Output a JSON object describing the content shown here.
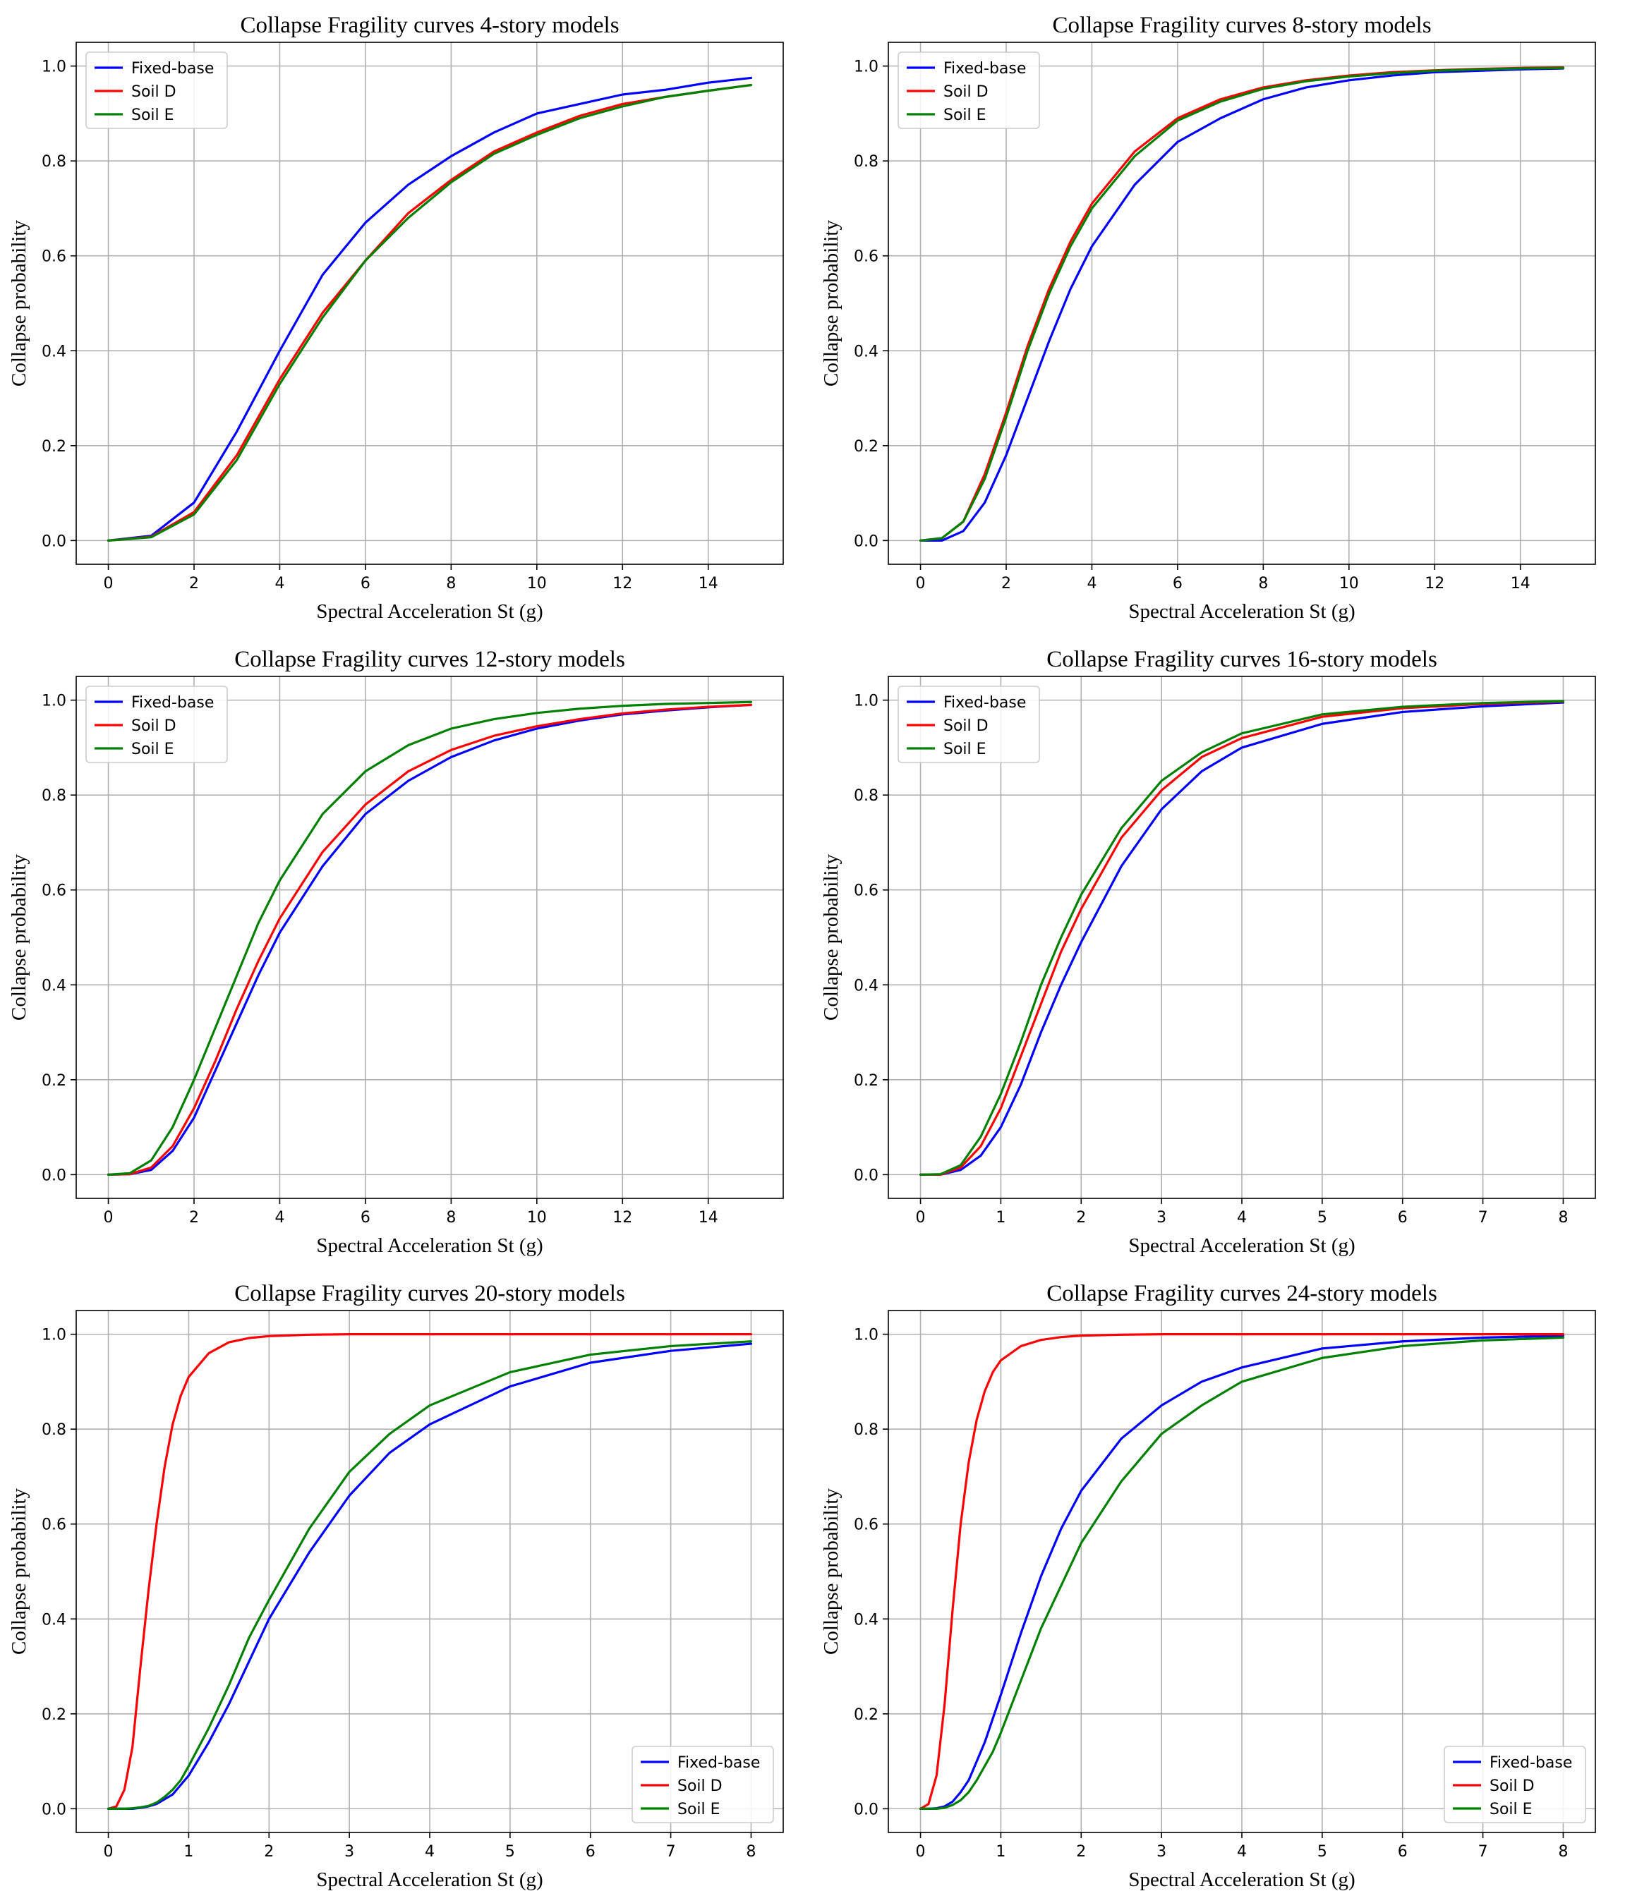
{
  "chart_data": [
    {
      "type": "line",
      "title": "Collapse Fragility curves 4-story models",
      "xlabel": "Spectral Acceleration St (g)",
      "ylabel": "Collapse probability",
      "xlim": [
        -0.75,
        15.75
      ],
      "ylim": [
        -0.05,
        1.05
      ],
      "xticks": [
        0,
        2,
        4,
        6,
        8,
        10,
        12,
        14
      ],
      "yticks": [
        0.0,
        0.2,
        0.4,
        0.6,
        0.8,
        1.0
      ],
      "grid": true,
      "legend_position": "top-left",
      "x": [
        0,
        1,
        2,
        3,
        4,
        5,
        6,
        7,
        8,
        9,
        10,
        11,
        12,
        13,
        14,
        15
      ],
      "series": [
        {
          "name": "Fixed-base",
          "color": "#0000ff",
          "values": [
            0.0,
            0.01,
            0.08,
            0.23,
            0.4,
            0.56,
            0.67,
            0.75,
            0.81,
            0.86,
            0.9,
            0.92,
            0.94,
            0.95,
            0.965,
            0.975
          ]
        },
        {
          "name": "Soil D",
          "color": "#ff0000",
          "values": [
            0.0,
            0.008,
            0.06,
            0.18,
            0.34,
            0.48,
            0.59,
            0.69,
            0.76,
            0.82,
            0.86,
            0.895,
            0.92,
            0.935,
            0.948,
            0.96
          ]
        },
        {
          "name": "Soil E",
          "color": "#008000",
          "values": [
            0.0,
            0.007,
            0.055,
            0.17,
            0.33,
            0.47,
            0.59,
            0.68,
            0.755,
            0.815,
            0.855,
            0.89,
            0.915,
            0.935,
            0.948,
            0.96
          ]
        }
      ]
    },
    {
      "type": "line",
      "title": "Collapse Fragility curves 8-story models",
      "xlabel": "Spectral Acceleration St (g)",
      "ylabel": "Collapse probability",
      "xlim": [
        -0.75,
        15.75
      ],
      "ylim": [
        -0.05,
        1.05
      ],
      "xticks": [
        0,
        2,
        4,
        6,
        8,
        10,
        12,
        14
      ],
      "yticks": [
        0.0,
        0.2,
        0.4,
        0.6,
        0.8,
        1.0
      ],
      "grid": true,
      "legend_position": "top-left",
      "x": [
        0,
        0.5,
        1,
        1.5,
        2,
        2.5,
        3,
        3.5,
        4,
        5,
        6,
        7,
        8,
        9,
        10,
        11,
        12,
        13,
        14,
        15
      ],
      "series": [
        {
          "name": "Fixed-base",
          "color": "#0000ff",
          "values": [
            0.0,
            0.0,
            0.02,
            0.08,
            0.18,
            0.3,
            0.42,
            0.53,
            0.62,
            0.75,
            0.84,
            0.89,
            0.93,
            0.955,
            0.97,
            0.98,
            0.987,
            0.99,
            0.993,
            0.995
          ]
        },
        {
          "name": "Soil D",
          "color": "#ff0000",
          "values": [
            0.0,
            0.005,
            0.04,
            0.14,
            0.27,
            0.41,
            0.53,
            0.63,
            0.71,
            0.82,
            0.89,
            0.93,
            0.955,
            0.97,
            0.98,
            0.987,
            0.991,
            0.994,
            0.996,
            0.997
          ]
        },
        {
          "name": "Soil E",
          "color": "#008000",
          "values": [
            0.0,
            0.005,
            0.04,
            0.13,
            0.26,
            0.4,
            0.52,
            0.62,
            0.7,
            0.81,
            0.885,
            0.925,
            0.952,
            0.968,
            0.978,
            0.985,
            0.99,
            0.993,
            0.995,
            0.996
          ]
        }
      ]
    },
    {
      "type": "line",
      "title": "Collapse Fragility curves 12-story models",
      "xlabel": "Spectral Acceleration St (g)",
      "ylabel": "Collapse probability",
      "xlim": [
        -0.75,
        15.75
      ],
      "ylim": [
        -0.05,
        1.05
      ],
      "xticks": [
        0,
        2,
        4,
        6,
        8,
        10,
        12,
        14
      ],
      "yticks": [
        0.0,
        0.2,
        0.4,
        0.6,
        0.8,
        1.0
      ],
      "grid": true,
      "legend_position": "top-left",
      "x": [
        0,
        0.5,
        1,
        1.5,
        2,
        2.5,
        3,
        3.5,
        4,
        5,
        6,
        7,
        8,
        9,
        10,
        11,
        12,
        13,
        14,
        15
      ],
      "series": [
        {
          "name": "Fixed-base",
          "color": "#0000ff",
          "values": [
            0.0,
            0.001,
            0.01,
            0.05,
            0.12,
            0.22,
            0.32,
            0.42,
            0.51,
            0.65,
            0.76,
            0.83,
            0.88,
            0.915,
            0.94,
            0.957,
            0.97,
            0.978,
            0.985,
            0.99
          ]
        },
        {
          "name": "Soil D",
          "color": "#ff0000",
          "values": [
            0.0,
            0.001,
            0.015,
            0.06,
            0.14,
            0.24,
            0.35,
            0.45,
            0.54,
            0.68,
            0.78,
            0.85,
            0.895,
            0.925,
            0.945,
            0.96,
            0.972,
            0.98,
            0.986,
            0.99
          ]
        },
        {
          "name": "Soil E",
          "color": "#008000",
          "values": [
            0.0,
            0.003,
            0.03,
            0.1,
            0.2,
            0.31,
            0.42,
            0.53,
            0.62,
            0.76,
            0.85,
            0.905,
            0.94,
            0.96,
            0.973,
            0.982,
            0.988,
            0.992,
            0.994,
            0.996
          ]
        }
      ]
    },
    {
      "type": "line",
      "title": "Collapse Fragility curves 16-story models",
      "xlabel": "Spectral Acceleration St (g)",
      "ylabel": "Collapse probability",
      "xlim": [
        -0.4,
        8.4
      ],
      "ylim": [
        -0.05,
        1.05
      ],
      "xticks": [
        0,
        1,
        2,
        3,
        4,
        5,
        6,
        7,
        8
      ],
      "yticks": [
        0.0,
        0.2,
        0.4,
        0.6,
        0.8,
        1.0
      ],
      "grid": true,
      "legend_position": "top-left",
      "x": [
        0,
        0.25,
        0.5,
        0.75,
        1,
        1.25,
        1.5,
        1.75,
        2,
        2.5,
        3,
        3.5,
        4,
        5,
        6,
        7,
        8
      ],
      "series": [
        {
          "name": "Fixed-base",
          "color": "#0000ff",
          "values": [
            0.0,
            0.0,
            0.01,
            0.04,
            0.1,
            0.19,
            0.3,
            0.4,
            0.49,
            0.65,
            0.77,
            0.85,
            0.9,
            0.95,
            0.975,
            0.987,
            0.995
          ]
        },
        {
          "name": "Soil D",
          "color": "#ff0000",
          "values": [
            0.0,
            0.0,
            0.015,
            0.06,
            0.14,
            0.25,
            0.36,
            0.47,
            0.56,
            0.71,
            0.81,
            0.88,
            0.92,
            0.965,
            0.983,
            0.992,
            0.997
          ]
        },
        {
          "name": "Soil E",
          "color": "#008000",
          "values": [
            0.0,
            0.001,
            0.02,
            0.08,
            0.17,
            0.28,
            0.4,
            0.5,
            0.59,
            0.73,
            0.83,
            0.89,
            0.93,
            0.97,
            0.986,
            0.994,
            0.998
          ]
        }
      ]
    },
    {
      "type": "line",
      "title": "Collapse Fragility curves 20-story models",
      "xlabel": "Spectral Acceleration St (g)",
      "ylabel": "Collapse probability",
      "xlim": [
        -0.4,
        8.4
      ],
      "ylim": [
        -0.05,
        1.05
      ],
      "xticks": [
        0,
        1,
        2,
        3,
        4,
        5,
        6,
        7,
        8
      ],
      "yticks": [
        0.0,
        0.2,
        0.4,
        0.6,
        0.8,
        1.0
      ],
      "grid": true,
      "legend_position": "bottom-right",
      "x": [
        0,
        0.1,
        0.2,
        0.3,
        0.4,
        0.5,
        0.6,
        0.7,
        0.8,
        0.9,
        1.0,
        1.25,
        1.5,
        1.75,
        2.0,
        2.5,
        3.0,
        3.5,
        4.0,
        5.0,
        6.0,
        7.0,
        8.0
      ],
      "series": [
        {
          "name": "Soil D",
          "color": "#ff0000",
          "values": [
            0.0,
            0.005,
            0.04,
            0.13,
            0.3,
            0.46,
            0.6,
            0.72,
            0.81,
            0.87,
            0.91,
            0.96,
            0.983,
            0.992,
            0.996,
            0.999,
            1.0,
            1.0,
            1.0,
            1.0,
            1.0,
            1.0,
            1.0
          ]
        },
        {
          "name": "Fixed-base",
          "color": "#0000ff",
          "values": [
            0.0,
            0.0,
            0.0,
            0.0,
            0.002,
            0.005,
            0.01,
            0.02,
            0.03,
            0.05,
            0.07,
            0.14,
            0.22,
            0.31,
            0.4,
            0.54,
            0.66,
            0.75,
            0.81,
            0.89,
            0.94,
            0.965,
            0.98
          ]
        },
        {
          "name": "Soil E",
          "color": "#008000",
          "values": [
            0.0,
            0.0,
            0.0,
            0.001,
            0.003,
            0.006,
            0.013,
            0.025,
            0.04,
            0.06,
            0.09,
            0.17,
            0.26,
            0.36,
            0.44,
            0.59,
            0.71,
            0.79,
            0.85,
            0.92,
            0.957,
            0.975,
            0.985
          ]
        }
      ]
    },
    {
      "type": "line",
      "title": "Collapse Fragility curves 24-story models",
      "xlabel": "Spectral Acceleration St (g)",
      "ylabel": "Collapse probability",
      "xlim": [
        -0.4,
        8.4
      ],
      "ylim": [
        -0.05,
        1.05
      ],
      "xticks": [
        0,
        1,
        2,
        3,
        4,
        5,
        6,
        7,
        8
      ],
      "yticks": [
        0.0,
        0.2,
        0.4,
        0.6,
        0.8,
        1.0
      ],
      "grid": true,
      "legend_position": "bottom-right",
      "x": [
        0,
        0.1,
        0.2,
        0.3,
        0.4,
        0.5,
        0.6,
        0.7,
        0.8,
        0.9,
        1.0,
        1.25,
        1.5,
        1.75,
        2.0,
        2.5,
        3.0,
        3.5,
        4.0,
        5.0,
        6.0,
        7.0,
        8.0
      ],
      "series": [
        {
          "name": "Fixed-base",
          "color": "#0000ff",
          "values": [
            0.0,
            0.0,
            0.001,
            0.005,
            0.015,
            0.035,
            0.06,
            0.1,
            0.14,
            0.19,
            0.24,
            0.37,
            0.49,
            0.59,
            0.67,
            0.78,
            0.85,
            0.9,
            0.93,
            0.97,
            0.985,
            0.993,
            0.997
          ]
        },
        {
          "name": "Soil D",
          "color": "#ff0000",
          "values": [
            0.0,
            0.01,
            0.07,
            0.22,
            0.42,
            0.6,
            0.73,
            0.82,
            0.88,
            0.92,
            0.945,
            0.975,
            0.988,
            0.994,
            0.997,
            0.999,
            1.0,
            1.0,
            1.0,
            1.0,
            1.0,
            1.0,
            1.0
          ]
        },
        {
          "name": "Soil E",
          "color": "#008000",
          "values": [
            0.0,
            0.0,
            0.0,
            0.002,
            0.008,
            0.018,
            0.035,
            0.06,
            0.09,
            0.12,
            0.16,
            0.27,
            0.38,
            0.47,
            0.56,
            0.69,
            0.79,
            0.85,
            0.9,
            0.95,
            0.975,
            0.987,
            0.993
          ]
        }
      ]
    }
  ]
}
